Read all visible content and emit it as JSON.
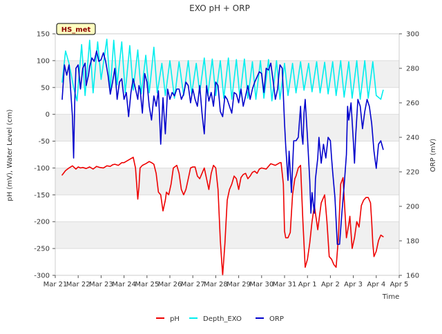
{
  "chart_data": {
    "type": "line",
    "title": "EXO pH + ORP",
    "badge": "HS_met",
    "xlabel": "Time",
    "ylabel_left": "pH (mV), Water Level (cm)",
    "ylabel_right": "ORP (mV)",
    "ylim_left": [
      -300,
      150
    ],
    "ylim_right": [
      160,
      300
    ],
    "xlim": [
      0,
      15
    ],
    "x_tick_values": [
      0,
      1,
      2,
      3,
      4,
      5,
      6,
      7,
      8,
      9,
      10,
      11,
      12,
      13,
      14,
      15
    ],
    "x_tick_labels": [
      "Mar 21",
      "Mar 22",
      "Mar 23",
      "Mar 24",
      "Mar 25",
      "Mar 26",
      "Mar 27",
      "Mar 28",
      "Mar 29",
      "Mar 30",
      "Mar 31",
      "Apr 1",
      "Apr 2",
      "Apr 3",
      "Apr 4",
      "Apr 5"
    ],
    "y_left_ticks": [
      150,
      100,
      50,
      0,
      -50,
      -100,
      -150,
      -200,
      -250,
      -300
    ],
    "y_right_ticks": [
      300,
      280,
      260,
      240,
      220,
      200,
      180,
      160
    ],
    "grid": true,
    "legend_position": "bottom-center",
    "series": [
      {
        "name": "pH",
        "axis": "left",
        "color": "#ee0000",
        "x": [
          0.3,
          0.45,
          0.6,
          0.75,
          0.9,
          1.0,
          1.1,
          1.2,
          1.35,
          1.5,
          1.65,
          1.8,
          1.95,
          2.1,
          2.25,
          2.4,
          2.5,
          2.6,
          2.75,
          2.9,
          3.0,
          3.2,
          3.4,
          3.5,
          3.55,
          3.6,
          3.65,
          3.7,
          3.8,
          3.95,
          4.1,
          4.2,
          4.3,
          4.4,
          4.5,
          4.6,
          4.7,
          4.8,
          4.85,
          4.95,
          5.05,
          5.15,
          5.3,
          5.4,
          5.5,
          5.6,
          5.7,
          5.8,
          5.9,
          6.0,
          6.1,
          6.2,
          6.3,
          6.4,
          6.5,
          6.6,
          6.7,
          6.8,
          6.9,
          7.0,
          7.1,
          7.2,
          7.3,
          7.4,
          7.5,
          7.6,
          7.7,
          7.8,
          7.9,
          8.0,
          8.1,
          8.2,
          8.3,
          8.4,
          8.5,
          8.6,
          8.7,
          8.8,
          8.9,
          9.0,
          9.2,
          9.4,
          9.6,
          9.8,
          9.85,
          9.95,
          10.0,
          10.05,
          10.15,
          10.25,
          10.35,
          10.45,
          10.5,
          10.6,
          10.7,
          10.8,
          10.9,
          11.0,
          11.1,
          11.2,
          11.3,
          11.45,
          11.6,
          11.75,
          11.85,
          11.95,
          12.05,
          12.15,
          12.25,
          12.35,
          12.45,
          12.55,
          12.7,
          12.8,
          12.85,
          12.95,
          13.05,
          13.15,
          13.25,
          13.35,
          13.45,
          13.55,
          13.65,
          13.75,
          13.8,
          13.85,
          13.9,
          14.0,
          14.1,
          14.2,
          14.3
        ],
        "values": [
          -113,
          -105,
          -100,
          -96,
          -102,
          -98,
          -100,
          -99,
          -101,
          -98,
          -102,
          -97,
          -99,
          -100,
          -96,
          -97,
          -94,
          -93,
          -95,
          -90,
          -90,
          -85,
          -80,
          -100,
          -130,
          -158,
          -135,
          -100,
          -95,
          -92,
          -88,
          -90,
          -93,
          -110,
          -145,
          -150,
          -180,
          -160,
          -145,
          -150,
          -130,
          -100,
          -95,
          -110,
          -140,
          -150,
          -140,
          -120,
          -100,
          -98,
          -98,
          -115,
          -120,
          -110,
          -100,
          -120,
          -140,
          -110,
          -95,
          -100,
          -140,
          -235,
          -300,
          -240,
          -160,
          -140,
          -130,
          -115,
          -120,
          -140,
          -118,
          -112,
          -110,
          -120,
          -115,
          -108,
          -106,
          -110,
          -102,
          -100,
          -102,
          -92,
          -95,
          -90,
          -90,
          -130,
          -218,
          -230,
          -230,
          -220,
          -150,
          -120,
          -115,
          -100,
          -95,
          -200,
          -285,
          -270,
          -240,
          -200,
          -170,
          -215,
          -165,
          -150,
          -200,
          -265,
          -270,
          -280,
          -285,
          -230,
          -130,
          -118,
          -230,
          -205,
          -190,
          -250,
          -230,
          -200,
          -210,
          -170,
          -160,
          -155,
          -155,
          -165,
          -200,
          -240,
          -265,
          -255,
          -235,
          -225,
          -228
        ]
      },
      {
        "name": "Depth_EXO",
        "axis": "left",
        "color": "#00eeee",
        "x": [
          0.3,
          0.45,
          0.6,
          0.8,
          0.95,
          1.15,
          1.3,
          1.5,
          1.65,
          1.85,
          2.0,
          2.25,
          2.4,
          2.55,
          2.7,
          2.9,
          3.05,
          3.25,
          3.4,
          3.6,
          3.75,
          3.95,
          4.1,
          4.3,
          4.45,
          4.65,
          4.8,
          5.0,
          5.2,
          5.4,
          5.6,
          5.8,
          5.95,
          6.15,
          6.3,
          6.5,
          6.65,
          6.85,
          7.0,
          7.2,
          7.35,
          7.55,
          7.7,
          7.9,
          8.05,
          8.25,
          8.4,
          8.6,
          8.75,
          8.95,
          9.1,
          9.3,
          9.45,
          9.65,
          9.8,
          10.0,
          10.15,
          10.35,
          10.5,
          10.7,
          10.85,
          11.05,
          11.2,
          11.4,
          11.55,
          11.75,
          11.9,
          12.1,
          12.25,
          12.45,
          12.6,
          12.8,
          12.95,
          13.15,
          13.3,
          13.5,
          13.65,
          13.85,
          14.0,
          14.2,
          14.3
        ],
        "values": [
          60,
          118,
          95,
          50,
          25,
          130,
          35,
          138,
          40,
          135,
          65,
          140,
          45,
          138,
          55,
          135,
          40,
          128,
          45,
          120,
          38,
          110,
          40,
          125,
          40,
          95,
          35,
          100,
          30,
          98,
          35,
          100,
          38,
          95,
          40,
          105,
          35,
          103,
          35,
          100,
          30,
          105,
          28,
          102,
          32,
          103,
          30,
          98,
          28,
          100,
          30,
          102,
          25,
          100,
          28,
          95,
          35,
          95,
          40,
          98,
          45,
          95,
          42,
          98,
          40,
          97,
          38,
          98,
          35,
          100,
          32,
          98,
          30,
          100,
          28,
          100,
          30,
          98,
          35,
          28,
          45
        ]
      },
      {
        "name": "ORP",
        "axis": "right",
        "color": "#0000cc",
        "x": [
          0.3,
          0.4,
          0.5,
          0.6,
          0.7,
          0.75,
          0.8,
          0.85,
          0.9,
          1.0,
          1.1,
          1.2,
          1.3,
          1.35,
          1.45,
          1.5,
          1.6,
          1.7,
          1.8,
          1.9,
          2.0,
          2.1,
          2.2,
          2.3,
          2.4,
          2.5,
          2.6,
          2.7,
          2.8,
          2.9,
          3.0,
          3.1,
          3.2,
          3.3,
          3.4,
          3.5,
          3.6,
          3.65,
          3.7,
          3.8,
          3.9,
          4.0,
          4.1,
          4.2,
          4.3,
          4.4,
          4.5,
          4.6,
          4.7,
          4.8,
          4.9,
          5.0,
          5.1,
          5.2,
          5.3,
          5.4,
          5.5,
          5.6,
          5.7,
          5.8,
          5.9,
          6.0,
          6.1,
          6.2,
          6.3,
          6.4,
          6.5,
          6.6,
          6.7,
          6.8,
          6.9,
          7.0,
          7.1,
          7.2,
          7.3,
          7.4,
          7.5,
          7.6,
          7.7,
          7.8,
          7.9,
          8.0,
          8.1,
          8.2,
          8.3,
          8.4,
          8.5,
          8.6,
          8.7,
          8.8,
          8.9,
          9.0,
          9.1,
          9.2,
          9.3,
          9.4,
          9.5,
          9.6,
          9.7,
          9.75,
          9.8,
          9.9,
          10.0,
          10.05,
          10.15,
          10.2,
          10.3,
          10.4,
          10.5,
          10.6,
          10.7,
          10.75,
          10.8,
          10.85,
          10.9,
          11.0,
          11.1,
          11.15,
          11.2,
          11.3,
          11.35,
          11.45,
          11.5,
          11.6,
          11.7,
          11.8,
          11.9,
          12.0,
          12.05,
          12.1,
          12.2,
          12.3,
          12.4,
          12.5,
          12.6,
          12.7,
          12.75,
          12.8,
          12.9,
          13.0,
          13.05,
          13.1,
          13.2,
          13.3,
          13.4,
          13.5,
          13.6,
          13.7,
          13.8,
          13.9,
          14.0,
          14.1,
          14.2,
          14.3
        ],
        "values": [
          262,
          282,
          276,
          282,
          262,
          252,
          228,
          260,
          280,
          282,
          268,
          280,
          283,
          270,
          276,
          281,
          286,
          284,
          290,
          284,
          285,
          289,
          284,
          276,
          265,
          272,
          280,
          262,
          272,
          274,
          262,
          266,
          252,
          266,
          274,
          268,
          262,
          270,
          268,
          254,
          277,
          272,
          258,
          250,
          264,
          258,
          267,
          236,
          263,
          242,
          268,
          262,
          266,
          264,
          268,
          268,
          262,
          265,
          272,
          270,
          260,
          268,
          262,
          258,
          270,
          254,
          242,
          270,
          261,
          266,
          258,
          272,
          270,
          255,
          252,
          264,
          262,
          258,
          254,
          266,
          265,
          260,
          268,
          258,
          264,
          270,
          262,
          268,
          272,
          275,
          278,
          277,
          266,
          280,
          279,
          283,
          273,
          262,
          268,
          276,
          282,
          280,
          248,
          235,
          215,
          232,
          208,
          238,
          238,
          240,
          258,
          242,
          236,
          254,
          262,
          240,
          215,
          196,
          208,
          196,
          216,
          228,
          240,
          225,
          236,
          228,
          240,
          238,
          228,
          220,
          205,
          178,
          178,
          196,
          212,
          230,
          258,
          250,
          260,
          238,
          225,
          240,
          262,
          258,
          245,
          255,
          262,
          258,
          248,
          232,
          222,
          236,
          238,
          233
        ]
      }
    ]
  }
}
